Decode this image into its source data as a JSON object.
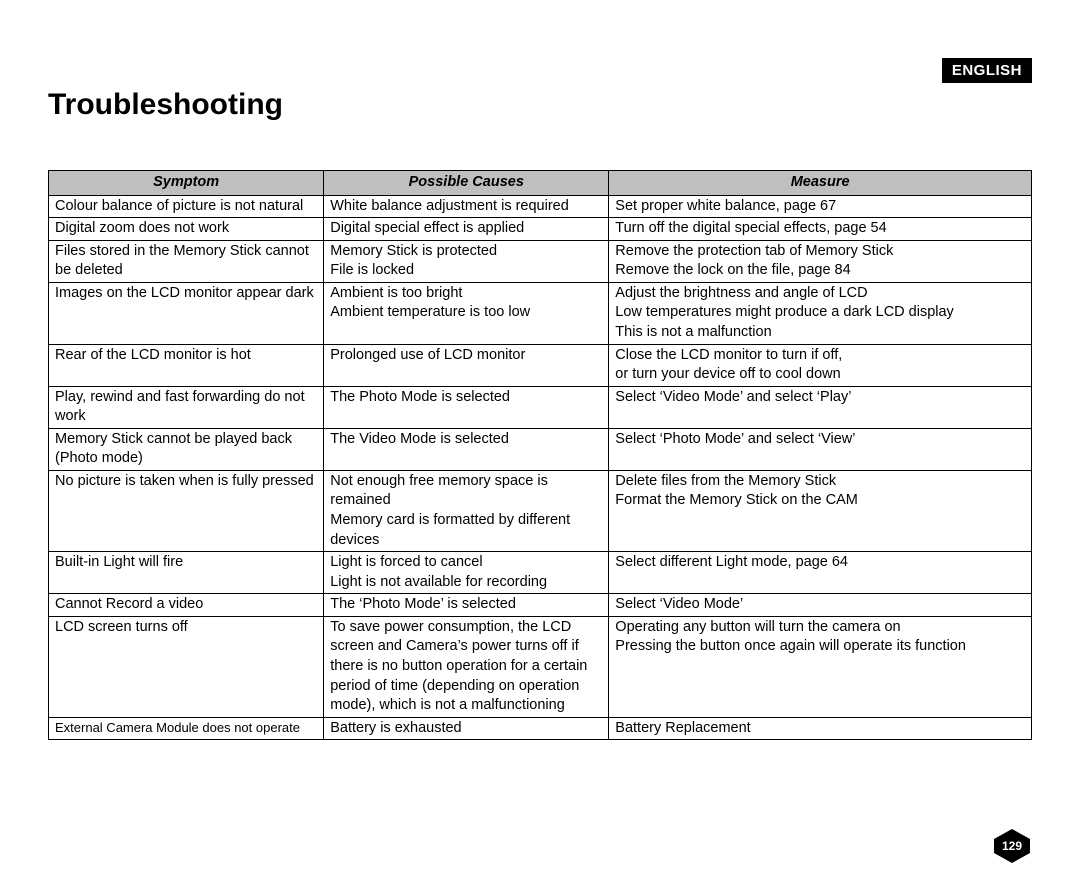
{
  "language_badge": "ENGLISH",
  "title": "Troubleshooting",
  "page_number": "129",
  "table": {
    "headers": [
      "Symptom",
      "Possible Causes",
      "Measure"
    ],
    "rows": [
      {
        "symptom": "Colour balance of picture is not natural",
        "cause": "White balance adjustment is required",
        "measure": "Set proper white balance, page 67"
      },
      {
        "symptom": "Digital zoom does not work",
        "cause": "Digital special effect is applied",
        "measure": "Turn off the digital special effects, page 54"
      },
      {
        "symptom": "Files stored in the Memory Stick cannot be deleted",
        "cause": "Memory Stick is protected\nFile is locked",
        "measure": "Remove the protection tab of Memory Stick\nRemove the lock on the file, page 84"
      },
      {
        "symptom": "Images on the LCD monitor appear dark",
        "cause": "Ambient is too bright\nAmbient temperature is too low",
        "measure": "Adjust the brightness and angle of LCD\nLow temperatures might produce a dark LCD display\nThis is not a malfunction"
      },
      {
        "symptom": "Rear of the LCD monitor is hot",
        "cause": "Prolonged use of LCD monitor",
        "measure": "Close the LCD monitor to turn if off,\nor turn your device off to cool down"
      },
      {
        "symptom": "Play, rewind and fast forwarding do not work",
        "cause": "The Photo Mode is selected",
        "measure": "Select ‘Video Mode’ and select ‘Play’"
      },
      {
        "symptom": "Memory Stick cannot be played back (Photo mode)",
        "cause": "The Video Mode is selected",
        "measure": "Select ‘Photo Mode’ and select ‘View’"
      },
      {
        "symptom": "No picture is taken when is fully pressed",
        "cause": "Not enough free memory space is remained\nMemory card is formatted by different devices",
        "measure": "Delete files from the Memory Stick\nFormat the Memory Stick on the CAM"
      },
      {
        "symptom": "Built-in Light will fire",
        "cause": "Light is forced to cancel\nLight is not available for recording",
        "measure": "Select different Light mode, page 64"
      },
      {
        "symptom": "Cannot Record a video",
        "cause": "The ‘Photo Mode’ is selected",
        "measure": "Select ‘Video Mode’"
      },
      {
        "symptom": "LCD screen turns off",
        "cause": "To save power consumption, the LCD screen and Camera’s power turns off if there is no button operation for a certain period of time (depending on operation mode), which is not a malfunctioning",
        "measure": "Operating any button will turn the camera on\nPressing the button once again will operate its function"
      },
      {
        "symptom": "External Camera Module does not operate",
        "symptom_small": true,
        "cause": "Battery is exhausted",
        "measure": "Battery Replacement"
      }
    ]
  }
}
